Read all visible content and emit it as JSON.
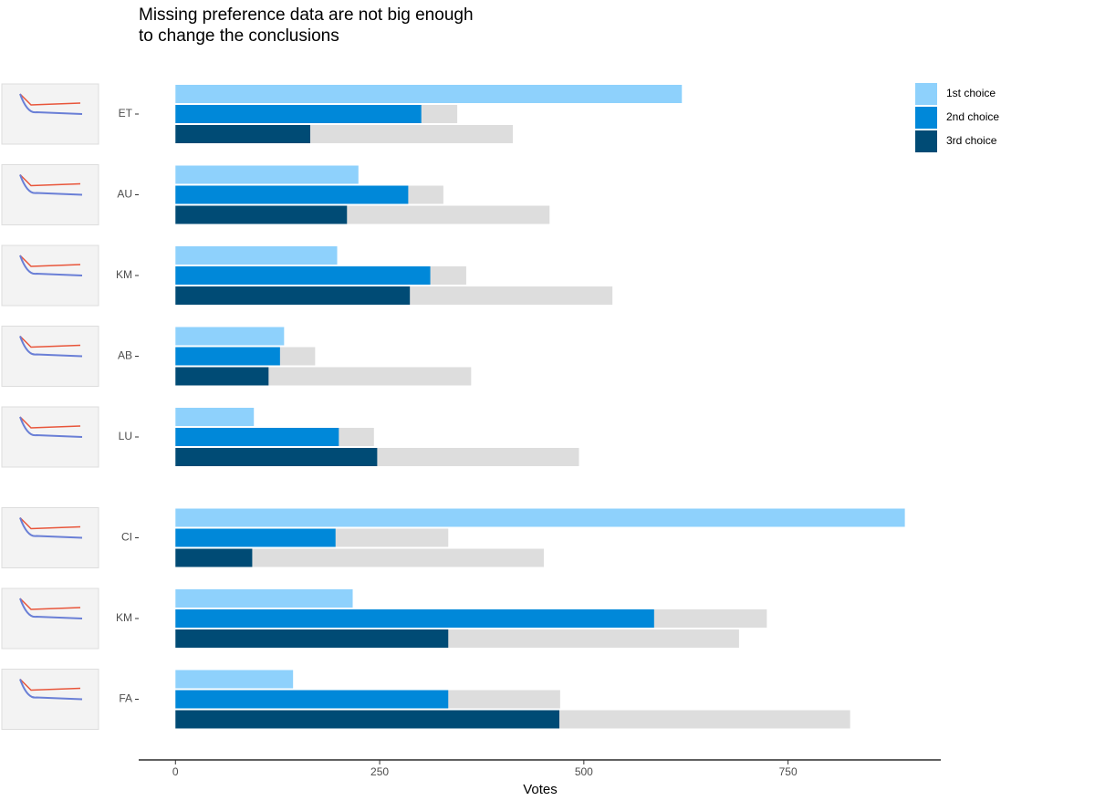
{
  "chart_data": {
    "type": "bar",
    "orientation": "horizontal",
    "title": [
      "Missing preference data are not big enough",
      "to change the conclusions"
    ],
    "x_label": "Votes",
    "categories": [
      "ET",
      "AU",
      "KM",
      "AB",
      "LU",
      "CI",
      "KM",
      "FA"
    ],
    "series": [
      {
        "name": "1st choice",
        "color": "#8ed1fc",
        "values": [
          620,
          224,
          198,
          133,
          96,
          893,
          217,
          144
        ]
      },
      {
        "name": "2nd choice",
        "color": "#0088d9",
        "values": [
          301,
          285,
          312,
          128,
          200,
          196,
          586,
          334
        ],
        "upper": [
          345,
          328,
          356,
          171,
          243,
          334,
          724,
          471
        ],
        "upper_color": "#dddddd"
      },
      {
        "name": "3rd choice",
        "color": "#004b75",
        "values": [
          165,
          210,
          287,
          114,
          247,
          94,
          334,
          470
        ],
        "upper": [
          413,
          458,
          535,
          362,
          494,
          451,
          690,
          826
        ],
        "upper_color": "#dddddd"
      }
    ],
    "xlim": [
      -45,
      937
    ],
    "xticks": [
      0,
      250,
      500,
      750
    ],
    "grid": false,
    "legend": "top-right"
  }
}
